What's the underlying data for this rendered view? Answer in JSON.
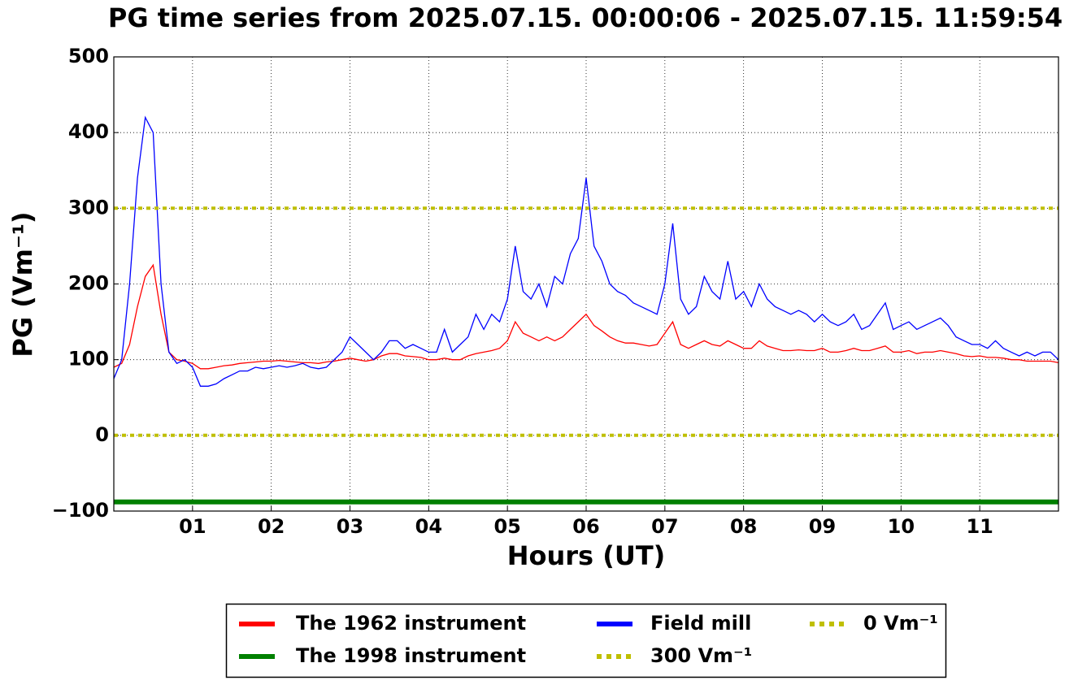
{
  "chart_data": {
    "type": "line",
    "title": "PG time series from 2025.07.15. 00:00:06 - 2025.07.15. 11:59:54",
    "xlabel": "Hours (UT)",
    "ylabel": "PG (Vm⁻¹)",
    "xlim": [
      0,
      12
    ],
    "ylim": [
      -100,
      500
    ],
    "xticks": [
      {
        "value": 1,
        "label": "01"
      },
      {
        "value": 2,
        "label": "02"
      },
      {
        "value": 3,
        "label": "03"
      },
      {
        "value": 4,
        "label": "04"
      },
      {
        "value": 5,
        "label": "05"
      },
      {
        "value": 6,
        "label": "06"
      },
      {
        "value": 7,
        "label": "07"
      },
      {
        "value": 8,
        "label": "08"
      },
      {
        "value": 9,
        "label": "09"
      },
      {
        "value": 10,
        "label": "10"
      },
      {
        "value": 11,
        "label": "11"
      }
    ],
    "yticks": [
      {
        "value": -100,
        "label": "−100"
      },
      0,
      100,
      200,
      300,
      400,
      500
    ],
    "grid": true,
    "legend": "below",
    "x": [
      0,
      0.1,
      0.2,
      0.3,
      0.4,
      0.5,
      0.6,
      0.7,
      0.8,
      0.9,
      1,
      1.1,
      1.2,
      1.3,
      1.4,
      1.5,
      1.6,
      1.7,
      1.8,
      1.9,
      2,
      2.1,
      2.2,
      2.3,
      2.4,
      2.5,
      2.6,
      2.7,
      2.8,
      2.9,
      3,
      3.1,
      3.2,
      3.3,
      3.4,
      3.5,
      3.6,
      3.7,
      3.8,
      3.9,
      4,
      4.1,
      4.2,
      4.3,
      4.4,
      4.5,
      4.6,
      4.7,
      4.8,
      4.9,
      5,
      5.1,
      5.2,
      5.3,
      5.4,
      5.5,
      5.6,
      5.7,
      5.8,
      5.9,
      6,
      6.1,
      6.2,
      6.3,
      6.4,
      6.5,
      6.6,
      6.7,
      6.8,
      6.9,
      7,
      7.1,
      7.2,
      7.3,
      7.4,
      7.5,
      7.6,
      7.7,
      7.8,
      7.9,
      8,
      8.1,
      8.2,
      8.3,
      8.4,
      8.5,
      8.6,
      8.7,
      8.8,
      8.9,
      9,
      9.1,
      9.2,
      9.3,
      9.4,
      9.5,
      9.6,
      9.7,
      9.8,
      9.9,
      10,
      10.1,
      10.2,
      10.3,
      10.4,
      10.5,
      10.6,
      10.7,
      10.8,
      10.9,
      11,
      11.1,
      11.2,
      11.3,
      11.4,
      11.5,
      11.6,
      11.7,
      11.8,
      11.9,
      12
    ],
    "series": [
      {
        "name": "The 1962 instrument",
        "color": "#ff0000",
        "values": [
          90,
          95,
          120,
          170,
          210,
          225,
          160,
          110,
          100,
          98,
          95,
          88,
          88,
          90,
          92,
          93,
          95,
          96,
          97,
          98,
          98,
          99,
          98,
          97,
          96,
          96,
          95,
          97,
          98,
          100,
          102,
          100,
          98,
          100,
          105,
          108,
          108,
          105,
          104,
          103,
          100,
          100,
          102,
          100,
          100,
          105,
          108,
          110,
          112,
          115,
          125,
          150,
          135,
          130,
          125,
          130,
          125,
          130,
          140,
          150,
          160,
          145,
          138,
          130,
          125,
          122,
          122,
          120,
          118,
          120,
          135,
          150,
          120,
          115,
          120,
          125,
          120,
          118,
          125,
          120,
          115,
          115,
          125,
          118,
          115,
          112,
          112,
          113,
          112,
          112,
          115,
          110,
          110,
          112,
          115,
          112,
          112,
          115,
          118,
          110,
          110,
          112,
          108,
          110,
          110,
          112,
          110,
          108,
          105,
          104,
          105,
          103,
          103,
          102,
          100,
          100,
          98,
          98,
          98,
          98,
          96
        ]
      },
      {
        "name": "The 1998 instrument",
        "color": "#008000",
        "x": [
          0,
          12
        ],
        "values": [
          -88,
          -88
        ],
        "width": 6
      },
      {
        "name": "Field mill",
        "color": "#0000ff",
        "values": [
          75,
          100,
          200,
          340,
          420,
          400,
          200,
          110,
          95,
          100,
          90,
          65,
          65,
          68,
          75,
          80,
          85,
          85,
          90,
          88,
          90,
          92,
          90,
          92,
          95,
          90,
          88,
          90,
          100,
          110,
          130,
          120,
          110,
          100,
          110,
          125,
          125,
          115,
          120,
          115,
          110,
          110,
          140,
          110,
          120,
          130,
          160,
          140,
          160,
          150,
          180,
          250,
          190,
          180,
          200,
          170,
          210,
          200,
          240,
          260,
          340,
          250,
          230,
          200,
          190,
          185,
          175,
          170,
          165,
          160,
          200,
          280,
          180,
          160,
          170,
          210,
          190,
          180,
          230,
          180,
          190,
          170,
          200,
          180,
          170,
          165,
          160,
          165,
          160,
          150,
          160,
          150,
          145,
          150,
          160,
          140,
          145,
          160,
          175,
          140,
          145,
          150,
          140,
          145,
          150,
          155,
          145,
          130,
          125,
          120,
          120,
          115,
          125,
          115,
          110,
          105,
          110,
          105,
          110,
          110,
          100
        ]
      },
      {
        "name": "300 Vm⁻¹",
        "color": "#bfbf00",
        "x": [
          0,
          12
        ],
        "values": [
          300,
          300
        ],
        "dash": true,
        "width": 4
      },
      {
        "name": "0 Vm⁻¹",
        "color": "#bfbf00",
        "x": [
          0,
          12
        ],
        "values": [
          0,
          0
        ],
        "dash": true,
        "width": 4
      }
    ]
  }
}
